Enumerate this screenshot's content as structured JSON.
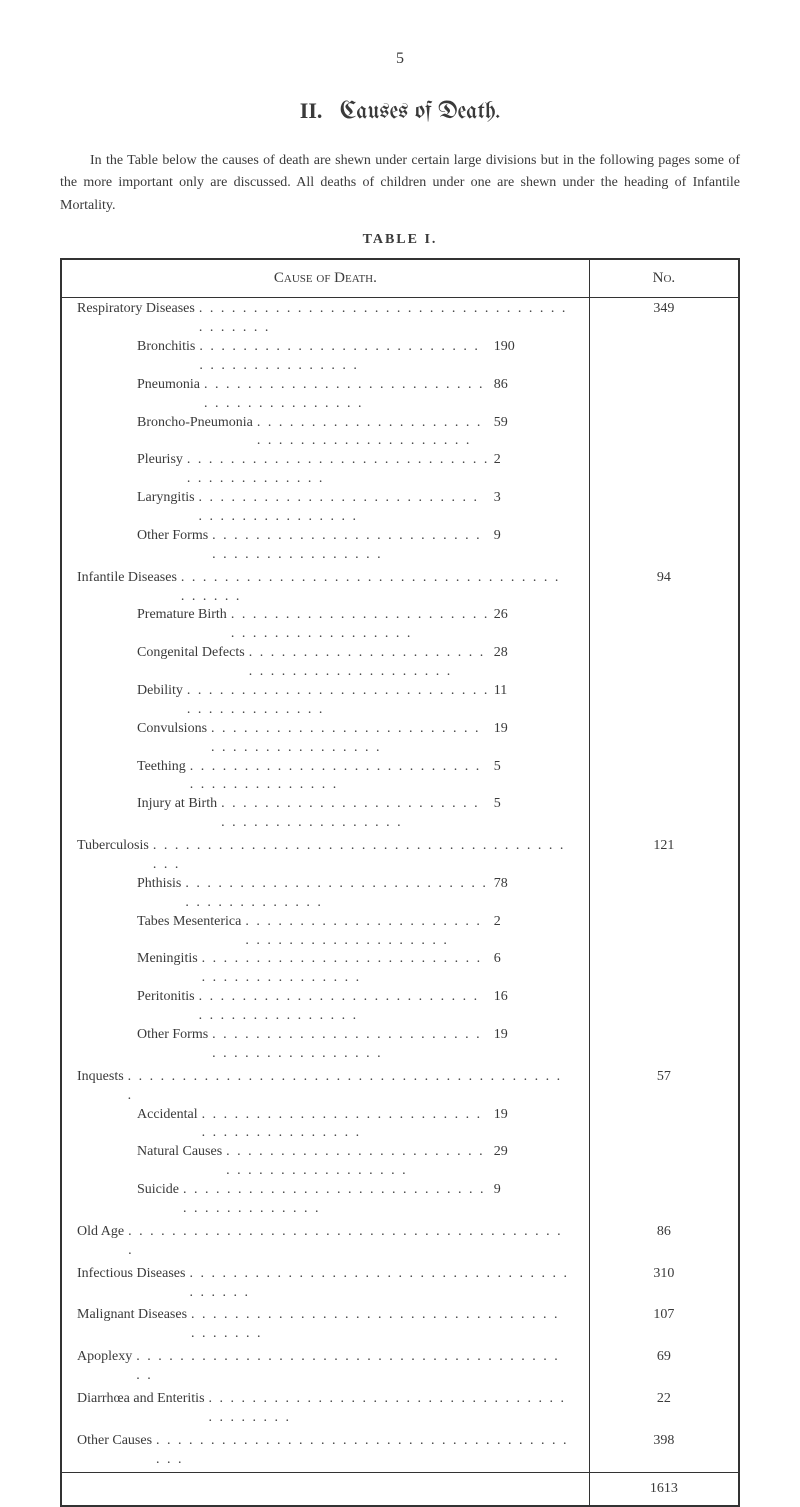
{
  "page_number": "5",
  "title_roman": "II.",
  "title_main": "Causes of Death.",
  "intro_text": "In the Table below the causes of death are shewn under certain large divisions but in the following pages some of the more important only are discussed. All deaths of children under one are shewn under the heading of Infantile Mortality.",
  "table_label": "TABLE I.",
  "header_cause": "Cause of Death.",
  "header_no": "No.",
  "dots": ". . . . . . . . . . . . . . . . . . . . . . . . . . . . . . . . . . . . . . . . .",
  "rows": [
    {
      "type": "main",
      "label": "Respiratory Diseases",
      "no": "349",
      "subs": [
        {
          "label": "Bronchitis",
          "val": "190"
        },
        {
          "label": "Pneumonia",
          "val": "86"
        },
        {
          "label": "Broncho-Pneumonia",
          "val": "59"
        },
        {
          "label": "Pleurisy",
          "val": "2"
        },
        {
          "label": "Laryngitis",
          "val": "3"
        },
        {
          "label": "Other Forms",
          "val": "9"
        }
      ]
    },
    {
      "type": "main",
      "label": "Infantile Diseases",
      "no": "94",
      "subs": [
        {
          "label": "Premature Birth",
          "val": "26"
        },
        {
          "label": "Congenital Defects",
          "val": "28"
        },
        {
          "label": "Debility",
          "val": "11"
        },
        {
          "label": "Convulsions",
          "val": "19"
        },
        {
          "label": "Teething",
          "val": "5"
        },
        {
          "label": "Injury at Birth",
          "val": "5"
        }
      ]
    },
    {
      "type": "main",
      "label": "Tuberculosis",
      "no": "121",
      "subs": [
        {
          "label": "Phthisis",
          "val": "78"
        },
        {
          "label": "Tabes Mesenterica",
          "val": "2"
        },
        {
          "label": "Meningitis",
          "val": "6"
        },
        {
          "label": "Peritonitis",
          "val": "16"
        },
        {
          "label": "Other Forms",
          "val": "19"
        }
      ]
    },
    {
      "type": "main",
      "label": "Inquests",
      "no": "57",
      "subs": [
        {
          "label": "Accidental",
          "val": "19"
        },
        {
          "label": "Natural Causes",
          "val": "29"
        },
        {
          "label": "Suicide",
          "val": "9"
        }
      ]
    },
    {
      "type": "single",
      "label": "Old Age",
      "no": "86"
    },
    {
      "type": "single",
      "label": "Infectious Diseases",
      "no": "310"
    },
    {
      "type": "single",
      "label": "Malignant Diseases",
      "no": "107"
    },
    {
      "type": "single",
      "label": "Apoplexy",
      "no": "69"
    },
    {
      "type": "single",
      "label": "Diarrhœa and Enteritis",
      "no": "22"
    },
    {
      "type": "single",
      "label": "Other Causes",
      "no": "398"
    }
  ],
  "total": "1613"
}
